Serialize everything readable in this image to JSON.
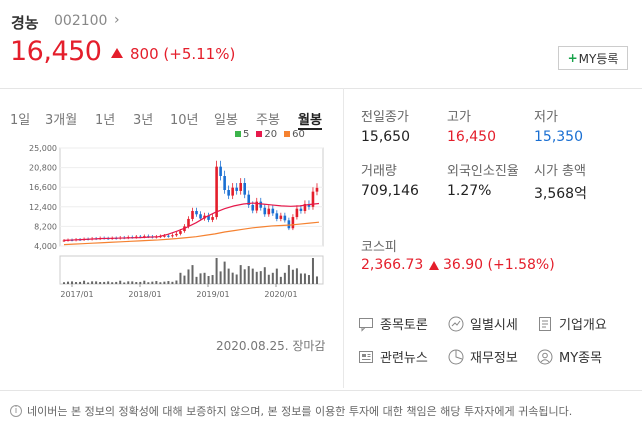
{
  "header": {
    "name": "경농",
    "code": "002100",
    "chevron": "›",
    "price": "16,450",
    "change": "800 (+5.11%)",
    "my_button": "MY등록",
    "my_plus": "+"
  },
  "tabs": [
    "1일",
    "3개월",
    "1년",
    "3년",
    "10년",
    "일봉",
    "주봉",
    "월봉"
  ],
  "active_tab": "월봉",
  "chart_legend": [
    {
      "label": "5",
      "color": "#3cb44b"
    },
    {
      "label": "20",
      "color": "#e6194b"
    },
    {
      "label": "60",
      "color": "#f58231"
    }
  ],
  "chart_data": {
    "type": "candlestick",
    "y_ticks": [
      "25,000",
      "20,800",
      "16,600",
      "12,400",
      "8,200",
      "4,000"
    ],
    "y_tick_values": [
      25000,
      20800,
      16600,
      12400,
      8200,
      4000
    ],
    "x_ticks": [
      "2017/01",
      "2018/01",
      "2019/01",
      "2020/01"
    ],
    "ylim": [
      4000,
      25000
    ],
    "grid": true,
    "ma_lines": {
      "ma20": [
        5200,
        5300,
        5400,
        5500,
        5600,
        5650,
        5700,
        5750,
        5800,
        5900,
        6000,
        6500,
        7200,
        8000,
        9000,
        10200,
        11200,
        12000,
        12600,
        13000,
        13200,
        13000,
        12800,
        12600,
        12500,
        12600,
        12900,
        13100
      ],
      "ma60": [
        4300,
        4400,
        4500,
        4600,
        4700,
        4800,
        4900,
        5000,
        5100,
        5200,
        5300,
        5450,
        5600,
        5800,
        6000,
        6300,
        6600,
        7000,
        7300,
        7600,
        7900,
        8100,
        8300,
        8400,
        8500,
        8700,
        8900,
        9100
      ]
    },
    "volume_note": "monthly volume bars"
  },
  "date_note": "2020.08.25. 장마감",
  "info": {
    "prev_close_label": "전일종가",
    "prev_close": "15,650",
    "high_label": "고가",
    "high": "16,450",
    "low_label": "저가",
    "low": "15,350",
    "volume_label": "거래량",
    "volume": "709,146",
    "foreign_label": "외국인소진율",
    "foreign": "1.27%",
    "mcap_label": "시가 총액",
    "mcap": "3,568억"
  },
  "kospi": {
    "label": "코스피",
    "value": "2,366.73",
    "change": "36.90 (+1.58%)"
  },
  "links": [
    {
      "label": "종목토론",
      "icon": "chat-icon"
    },
    {
      "label": "일별시세",
      "icon": "trend-icon"
    },
    {
      "label": "기업개요",
      "icon": "document-icon"
    },
    {
      "label": "관련뉴스",
      "icon": "news-icon"
    },
    {
      "label": "재무정보",
      "icon": "pie-chart-icon"
    },
    {
      "label": "MY종목",
      "icon": "person-icon"
    }
  ],
  "footer": "네이버는 본 정보의 정확성에 대해 보증하지 않으며, 본 정보를 이용한 투자에 대한 책임은 해당 투자자에게 귀속됩니다.",
  "footer_icon": "i",
  "colors": {
    "up": "#e41e2b",
    "down": "#1a6fd2"
  }
}
